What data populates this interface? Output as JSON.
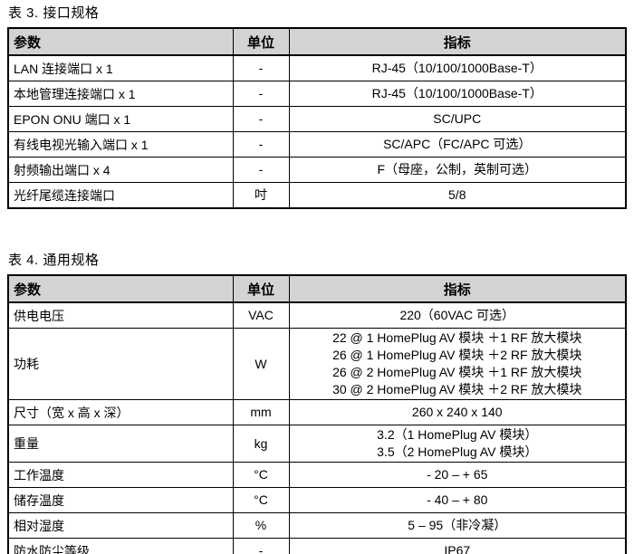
{
  "colors": {
    "page_bg": "#ffffff",
    "header_bg": "#d3d3d3",
    "border": "#000000",
    "text": "#000000"
  },
  "tables": [
    {
      "title": "表 3. 接口规格",
      "headers": {
        "param": "参数",
        "unit": "单位",
        "spec": "指标"
      },
      "rows": [
        {
          "param": "LAN 连接端口 x 1",
          "unit": "-",
          "spec": [
            "RJ-45（10/100/1000Base-T）"
          ]
        },
        {
          "param": "本地管理连接端口 x 1",
          "unit": "-",
          "spec": [
            "RJ-45（10/100/1000Base-T）"
          ]
        },
        {
          "param": "EPON ONU 端口 x 1",
          "unit": "-",
          "spec": [
            "SC/UPC"
          ]
        },
        {
          "param": "有线电视光输入端口 x 1",
          "unit": "-",
          "spec": [
            "SC/APC（FC/APC 可选）"
          ]
        },
        {
          "param": "射频输出端口 x 4",
          "unit": "-",
          "spec": [
            "F（母座，公制，英制可选）"
          ]
        },
        {
          "param": "光纤尾缆连接端口",
          "unit": "吋",
          "spec": [
            "5/8"
          ]
        }
      ]
    },
    {
      "title": "表 4. 通用规格",
      "headers": {
        "param": "参数",
        "unit": "单位",
        "spec": "指标"
      },
      "rows": [
        {
          "param": "供电电压",
          "unit": "VAC",
          "spec": [
            "220（60VAC 可选）"
          ]
        },
        {
          "param": "功耗",
          "unit": "W",
          "spec": [
            "22 @ 1 HomePlug AV 模块 ＋1 RF 放大模块",
            "26 @ 1 HomePlug AV 模块 ＋2 RF 放大模块",
            "26 @ 2 HomePlug AV 模块 ＋1 RF 放大模块",
            "30 @ 2 HomePlug AV 模块 ＋2 RF 放大模块"
          ]
        },
        {
          "param": "尺寸（宽 x 高 x 深）",
          "unit": "mm",
          "spec": [
            "260 x 240 x 140"
          ]
        },
        {
          "param": "重量",
          "unit": "kg",
          "spec": [
            "3.2（1 HomePlug AV 模块）",
            "3.5（2 HomePlug AV 模块）"
          ]
        },
        {
          "param": "工作温度",
          "unit": "°C",
          "spec": [
            "- 20 – + 65"
          ]
        },
        {
          "param": "储存温度",
          "unit": "°C",
          "spec": [
            "- 40 – + 80"
          ]
        },
        {
          "param": "相对湿度",
          "unit": "%",
          "spec": [
            "5 – 95（非冷凝）"
          ]
        },
        {
          "param": "防水防尘等级",
          "unit": "-",
          "spec": [
            "IP67"
          ]
        }
      ]
    }
  ]
}
